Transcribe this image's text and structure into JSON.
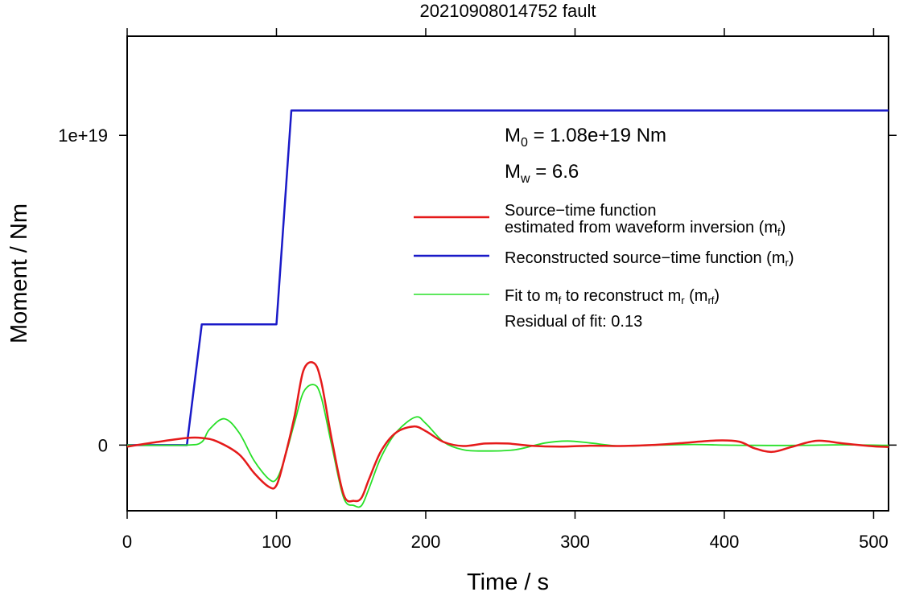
{
  "chart_data": {
    "type": "line",
    "title": "20210908014752 fault",
    "xlabel": "Time / s",
    "ylabel": "Moment / Nm",
    "xlim": [
      0,
      510
    ],
    "ylim": [
      -2.12e+18,
      1.32e+19
    ],
    "x_ticks": [
      0,
      100,
      200,
      300,
      400,
      500
    ],
    "x_tick_labels": [
      "0",
      "100",
      "200",
      "300",
      "400",
      "500"
    ],
    "y_ticks": [
      0,
      1e+19
    ],
    "y_tick_labels": [
      "0",
      "1e+19"
    ],
    "grid": false,
    "legend_position": "right",
    "annotations": {
      "m0": {
        "symbol": "M",
        "sub": "0",
        "text": " = 1.08e+19 Nm"
      },
      "mw": {
        "symbol": "M",
        "sub": "w",
        "text": " = 6.6"
      },
      "residual": "Residual of fit: 0.13"
    },
    "legend": [
      {
        "line1": "Source−time function",
        "line2": "estimated from waveform inversion (m",
        "sub": "f",
        "tail": ")",
        "color": "#e51a1a"
      },
      {
        "line1": "Reconstructed source−time function (m",
        "sub": "r",
        "tail": ")",
        "color": "#1a1ac8"
      },
      {
        "line1": "Fit to m",
        "sub": "f",
        "mid": " to reconstruct m",
        "sub2": "r",
        "mid2": " (m",
        "sub3": "rf",
        "tail": ")",
        "color": "#28e028"
      }
    ],
    "series": [
      {
        "color": "#1a1ac8",
        "x": [
          0,
          40,
          50,
          100,
          110,
          510
        ],
        "y": [
          0,
          0,
          3.9e+18,
          3.9e+18,
          1.08e+19,
          1.08e+19
        ]
      },
      {
        "color": "#e51a1a",
        "x": [
          0,
          20,
          40,
          50,
          60,
          75,
          85,
          95,
          100,
          105,
          112,
          118,
          125,
          130,
          137,
          145,
          152,
          157,
          162,
          170,
          180,
          192,
          200,
          212,
          225,
          240,
          255,
          270,
          290,
          310,
          330,
          350,
          370,
          395,
          410,
          420,
          432,
          445,
          462,
          480,
          500,
          510
        ],
        "y": [
          -5e+16,
          1e+17,
          2.3e+17,
          2.3e+17,
          1.2e+17,
          -3e+17,
          -9e+17,
          -1.35e+18,
          -1.3e+18,
          -5e+17,
          9e+17,
          2.4e+18,
          2.65e+18,
          2.05e+18,
          2e+17,
          -1.6e+18,
          -1.8e+18,
          -1.7e+18,
          -1.1e+18,
          -2e+17,
          4e+17,
          6e+17,
          4.5e+17,
          1e+17,
          -3e+16,
          5e+16,
          5e+16,
          -2e+16,
          -5e+16,
          -2e+16,
          -3e+16,
          0,
          6e+16,
          1.5e+17,
          1.1e+17,
          -1e+17,
          -2.2e+17,
          -6e+16,
          1.4e+17,
          5e+16,
          -4e+16,
          -6e+16
        ]
      },
      {
        "color": "#28e028",
        "x": [
          0,
          40,
          50,
          55,
          65,
          75,
          85,
          95,
          100,
          105,
          112,
          118,
          125,
          130,
          137,
          145,
          152,
          157,
          162,
          170,
          180,
          193,
          200,
          212,
          225,
          240,
          260,
          280,
          295,
          310,
          330,
          355,
          380,
          400,
          420,
          450,
          480,
          510
        ],
        "y": [
          0,
          0,
          1e+17,
          5e+17,
          8.5e+17,
          4e+17,
          -5e+17,
          -1.1e+18,
          -1.1e+18,
          -5e+17,
          7e+17,
          1.7e+18,
          1.95e+18,
          1.55e+18,
          0,
          -1.7e+18,
          -1.95e+18,
          -1.95e+18,
          -1.4e+18,
          -4e+17,
          4e+17,
          9e+17,
          7e+17,
          1e+17,
          -1.5e+17,
          -1.9e+17,
          -1.5e+17,
          7e+16,
          1.3e+17,
          7e+16,
          -3e+16,
          0,
          2e+16,
          0,
          -1e+16,
          -1e+16,
          1e+16,
          -1e+16
        ]
      }
    ]
  }
}
